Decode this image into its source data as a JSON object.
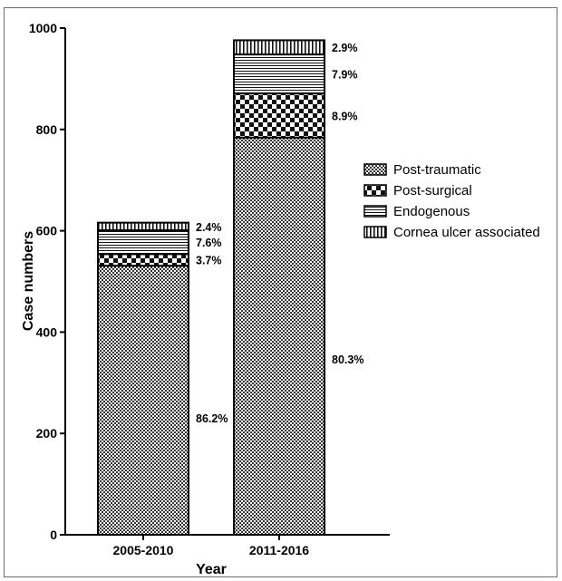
{
  "chart_data": {
    "type": "bar",
    "stacked": true,
    "categories": [
      "2005-2010",
      "2011-2016"
    ],
    "xlabel": "Year",
    "ylabel": "Case numbers",
    "ylim": [
      0,
      1000
    ],
    "yticks": [
      "0",
      "200",
      "400",
      "600",
      "800",
      "1000"
    ],
    "grid": false,
    "legend_position": "right",
    "series": [
      {
        "name": "Post-traumatic",
        "values": [
          531,
          784
        ],
        "labels": [
          "86.2%",
          "80.3%"
        ],
        "pattern": "fine-checker"
      },
      {
        "name": "Post-surgical",
        "values": [
          23,
          87
        ],
        "labels": [
          "3.7%",
          "8.9%"
        ],
        "pattern": "large-checker"
      },
      {
        "name": "Endogenous",
        "values": [
          47,
          77
        ],
        "labels": [
          "7.6%",
          "7.9%"
        ],
        "pattern": "horizontal-lines"
      },
      {
        "name": "Cornea ulcer associated",
        "values": [
          15,
          28
        ],
        "labels": [
          "2.4%",
          "2.9%"
        ],
        "pattern": "vertical-lines"
      }
    ]
  }
}
